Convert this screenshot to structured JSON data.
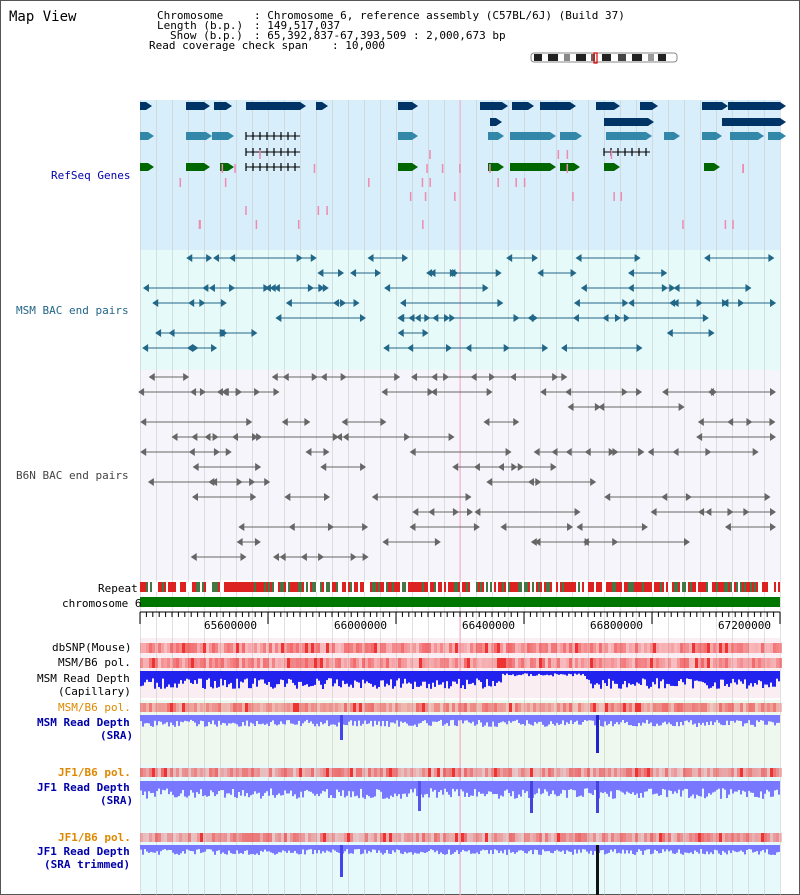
{
  "view_title": "Map View",
  "info": {
    "chromosome_label": "Chromosome",
    "chromosome_value": ": Chromosome 6, reference assembly (C57BL/6J) (Build 37)",
    "length_label": "Length (b.p.)",
    "length_value": ": 149,517,037",
    "show_label": "Show (b.p.)",
    "show_value": ": 65,392,837-67,393,509 : 2,000,673 bp",
    "coverage_label": "Read coverage check span",
    "coverage_value": ": 10,000"
  },
  "tracks": {
    "refseq": "RefSeq Genes",
    "msm_bac": "MSM BAC end pairs",
    "b6n_bac": "B6N BAC end pairs",
    "repeat": "Repeat",
    "chromosome": "chromosome 6",
    "dbsnp": "dbSNP(Mouse)",
    "msm_pol": "MSM/B6 pol.",
    "msm_depth_cap_1": "MSM Read Depth",
    "msm_depth_cap_2": "(Capillary)",
    "msm_pol_2": "MSM/B6 pol.",
    "msm_depth_sra_1": "MSM Read Depth",
    "msm_depth_sra_2": "(SRA)",
    "jf1_pol_1": "JF1/B6 pol.",
    "jf1_depth_sra_1": "JF1 Read Depth",
    "jf1_depth_sra_2": "(SRA)",
    "jf1_pol_2": "JF1/B6 pol.",
    "jf1_depth_trim_1": "JF1 Read Depth",
    "jf1_depth_trim_2": "(SRA trimmed)"
  },
  "ruler": {
    "ticks": [
      "65600000",
      "66000000",
      "66400000",
      "66800000",
      "67200000"
    ]
  },
  "colors": {
    "refseq_dark": "#003366",
    "refseq_mid": "#3388aa",
    "refseq_green": "#006600",
    "msm_bac": "#226688",
    "b6n_bac": "#666666",
    "depth_blue": "#2222ee",
    "depth_light": "#7777ff",
    "pol_red": "#ee3333",
    "label_blue": "#0000aa",
    "label_orange": "#dd8800"
  }
}
